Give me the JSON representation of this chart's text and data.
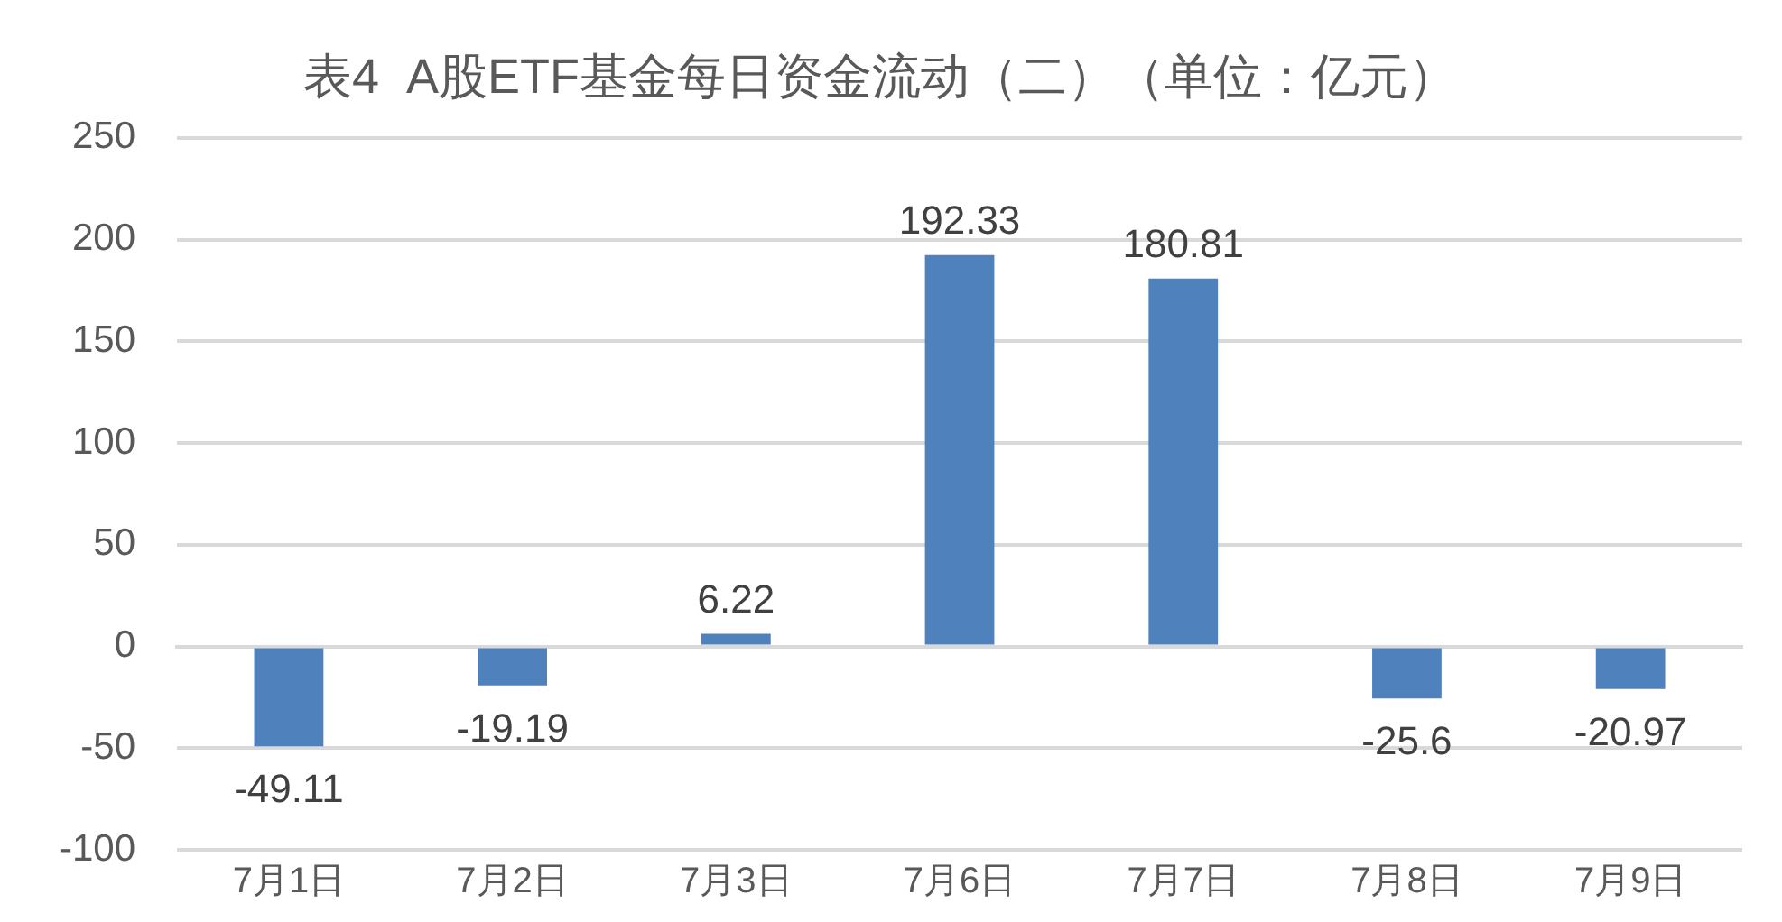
{
  "chart_data": {
    "type": "bar",
    "title": "表4  A股ETF基金每日资金流动（二）（单位：亿元）",
    "categories": [
      "7月1日",
      "7月2日",
      "7月3日",
      "7月6日",
      "7月7日",
      "7月8日",
      "7月9日"
    ],
    "values": [
      -49.11,
      -19.19,
      6.22,
      192.33,
      180.81,
      -25.6,
      -20.97
    ],
    "color": "#4f81bd",
    "ylim": [
      -100,
      250
    ],
    "yticks": [
      -100,
      -50,
      0,
      50,
      100,
      150,
      200,
      250
    ],
    "grid": "y",
    "data_labels": true,
    "legend": false
  }
}
